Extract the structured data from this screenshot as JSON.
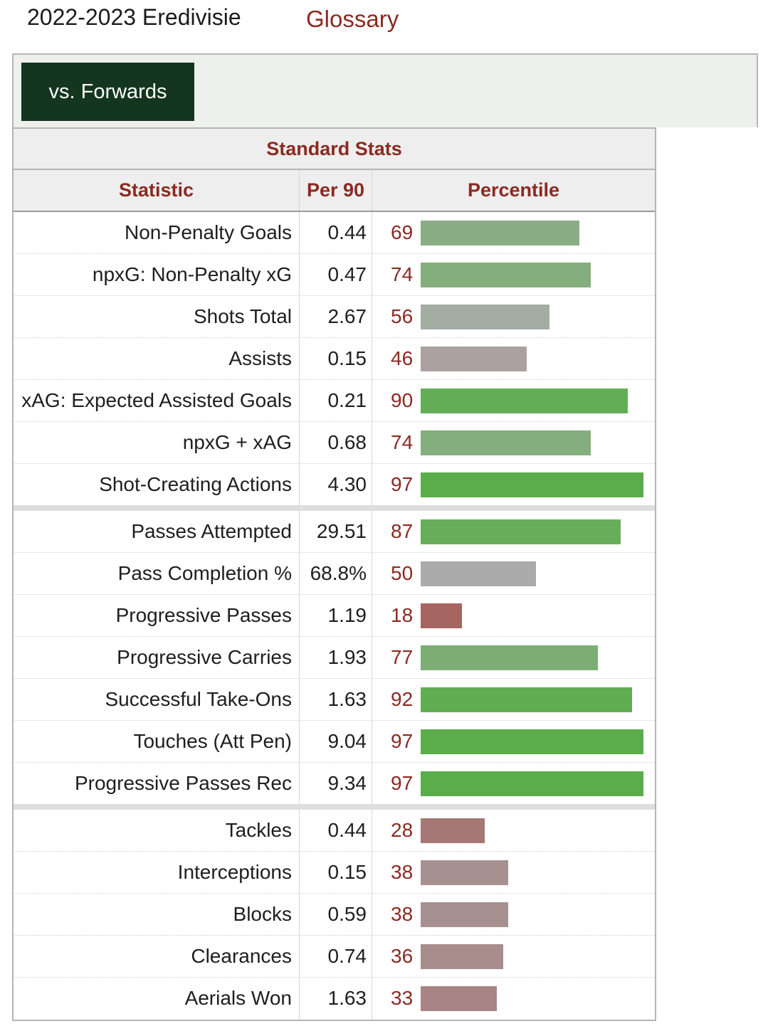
{
  "header": {
    "season_title": "2022-2023 Eredivisie",
    "glossary_label": "Glossary"
  },
  "filter": {
    "active_label": "vs. Forwards",
    "active_color": "#14361e"
  },
  "table": {
    "title": "Standard Stats",
    "columns": {
      "statistic": "Statistic",
      "per90": "Per 90",
      "percentile": "Percentile"
    },
    "groups": [
      {
        "rows": [
          {
            "statistic": "Non-Penalty Goals",
            "per90": "0.44",
            "percentile": 69,
            "bar_color": "#8aad85"
          },
          {
            "statistic": "npxG: Non-Penalty xG",
            "per90": "0.47",
            "percentile": 74,
            "bar_color": "#84ae7d"
          },
          {
            "statistic": "Shots Total",
            "per90": "2.67",
            "percentile": 56,
            "bar_color": "#a3ada2"
          },
          {
            "statistic": "Assists",
            "per90": "0.15",
            "percentile": 46,
            "bar_color": "#aca1a1"
          },
          {
            "statistic": "xAG: Expected Assisted Goals",
            "per90": "0.21",
            "percentile": 90,
            "bar_color": "#64ad57"
          },
          {
            "statistic": "npxG + xAG",
            "per90": "0.68",
            "percentile": 74,
            "bar_color": "#84ae7d"
          },
          {
            "statistic": "Shot-Creating Actions",
            "per90": "4.30",
            "percentile": 97,
            "bar_color": "#5bad4b"
          }
        ]
      },
      {
        "rows": [
          {
            "statistic": "Passes Attempted",
            "per90": "29.51",
            "percentile": 87,
            "bar_color": "#68ad5b"
          },
          {
            "statistic": "Pass Completion %",
            "per90": "68.8%",
            "percentile": 50,
            "bar_color": "#ababab"
          },
          {
            "statistic": "Progressive Passes",
            "per90": "1.19",
            "percentile": 18,
            "bar_color": "#a56561"
          },
          {
            "statistic": "Progressive Carries",
            "per90": "1.93",
            "percentile": 77,
            "bar_color": "#7dae74"
          },
          {
            "statistic": "Successful Take-Ons",
            "per90": "1.63",
            "percentile": 92,
            "bar_color": "#60ad52"
          },
          {
            "statistic": "Touches (Att Pen)",
            "per90": "9.04",
            "percentile": 97,
            "bar_color": "#5bad4b"
          },
          {
            "statistic": "Progressive Passes Rec",
            "per90": "9.34",
            "percentile": 97,
            "bar_color": "#5bad4b"
          }
        ]
      },
      {
        "rows": [
          {
            "statistic": "Tackles",
            "per90": "0.44",
            "percentile": 28,
            "bar_color": "#a57876"
          },
          {
            "statistic": "Interceptions",
            "per90": "0.15",
            "percentile": 38,
            "bar_color": "#a79190"
          },
          {
            "statistic": "Blocks",
            "per90": "0.59",
            "percentile": 38,
            "bar_color": "#a79190"
          },
          {
            "statistic": "Clearances",
            "per90": "0.74",
            "percentile": 36,
            "bar_color": "#a88d8c"
          },
          {
            "statistic": "Aerials Won",
            "per90": "1.63",
            "percentile": 33,
            "bar_color": "#a78584"
          }
        ]
      }
    ]
  }
}
